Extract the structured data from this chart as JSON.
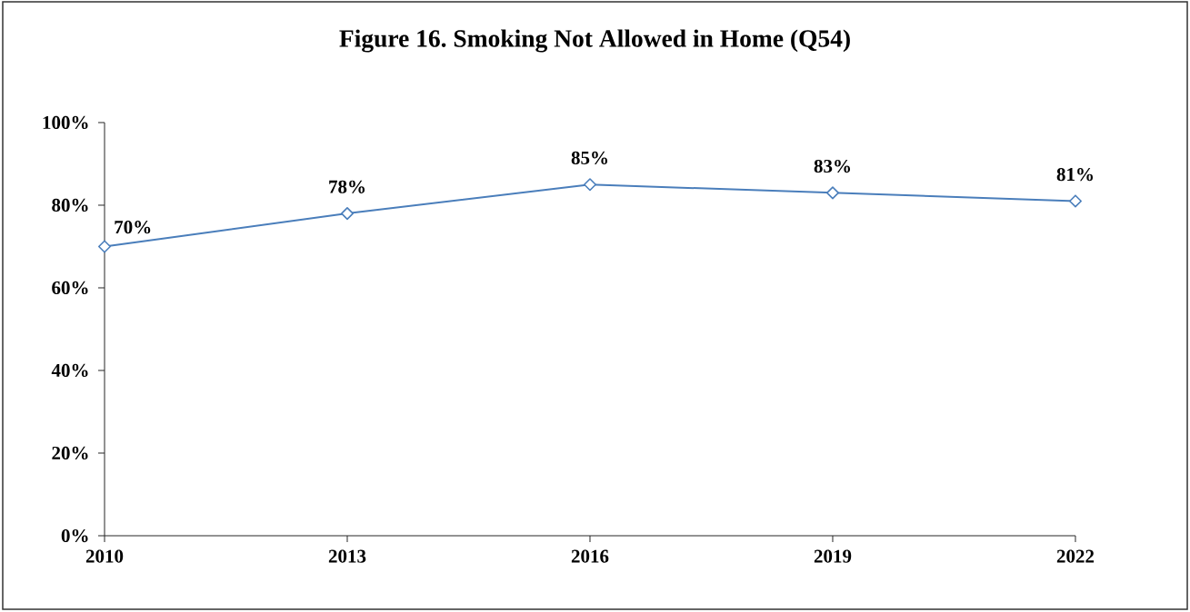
{
  "chart_data": {
    "type": "line",
    "title": "Figure 16. Smoking Not Allowed in Home (Q54)",
    "categories": [
      "2010",
      "2013",
      "2016",
      "2019",
      "2022"
    ],
    "values": [
      70,
      78,
      85,
      83,
      81
    ],
    "color": "#4a7ebb",
    "value_labels": [
      "70%",
      "78%",
      "85%",
      "83%",
      "81%"
    ],
    "ylim": [
      0,
      100
    ],
    "yticks": [
      {
        "value": 0,
        "label": "0%"
      },
      {
        "value": 20,
        "label": "20%"
      },
      {
        "value": 40,
        "label": "40%"
      },
      {
        "value": 60,
        "label": "60%"
      },
      {
        "value": 80,
        "label": "80%"
      },
      {
        "value": 100,
        "label": "100%"
      }
    ],
    "marker": "diamond",
    "line_style": "solid"
  }
}
